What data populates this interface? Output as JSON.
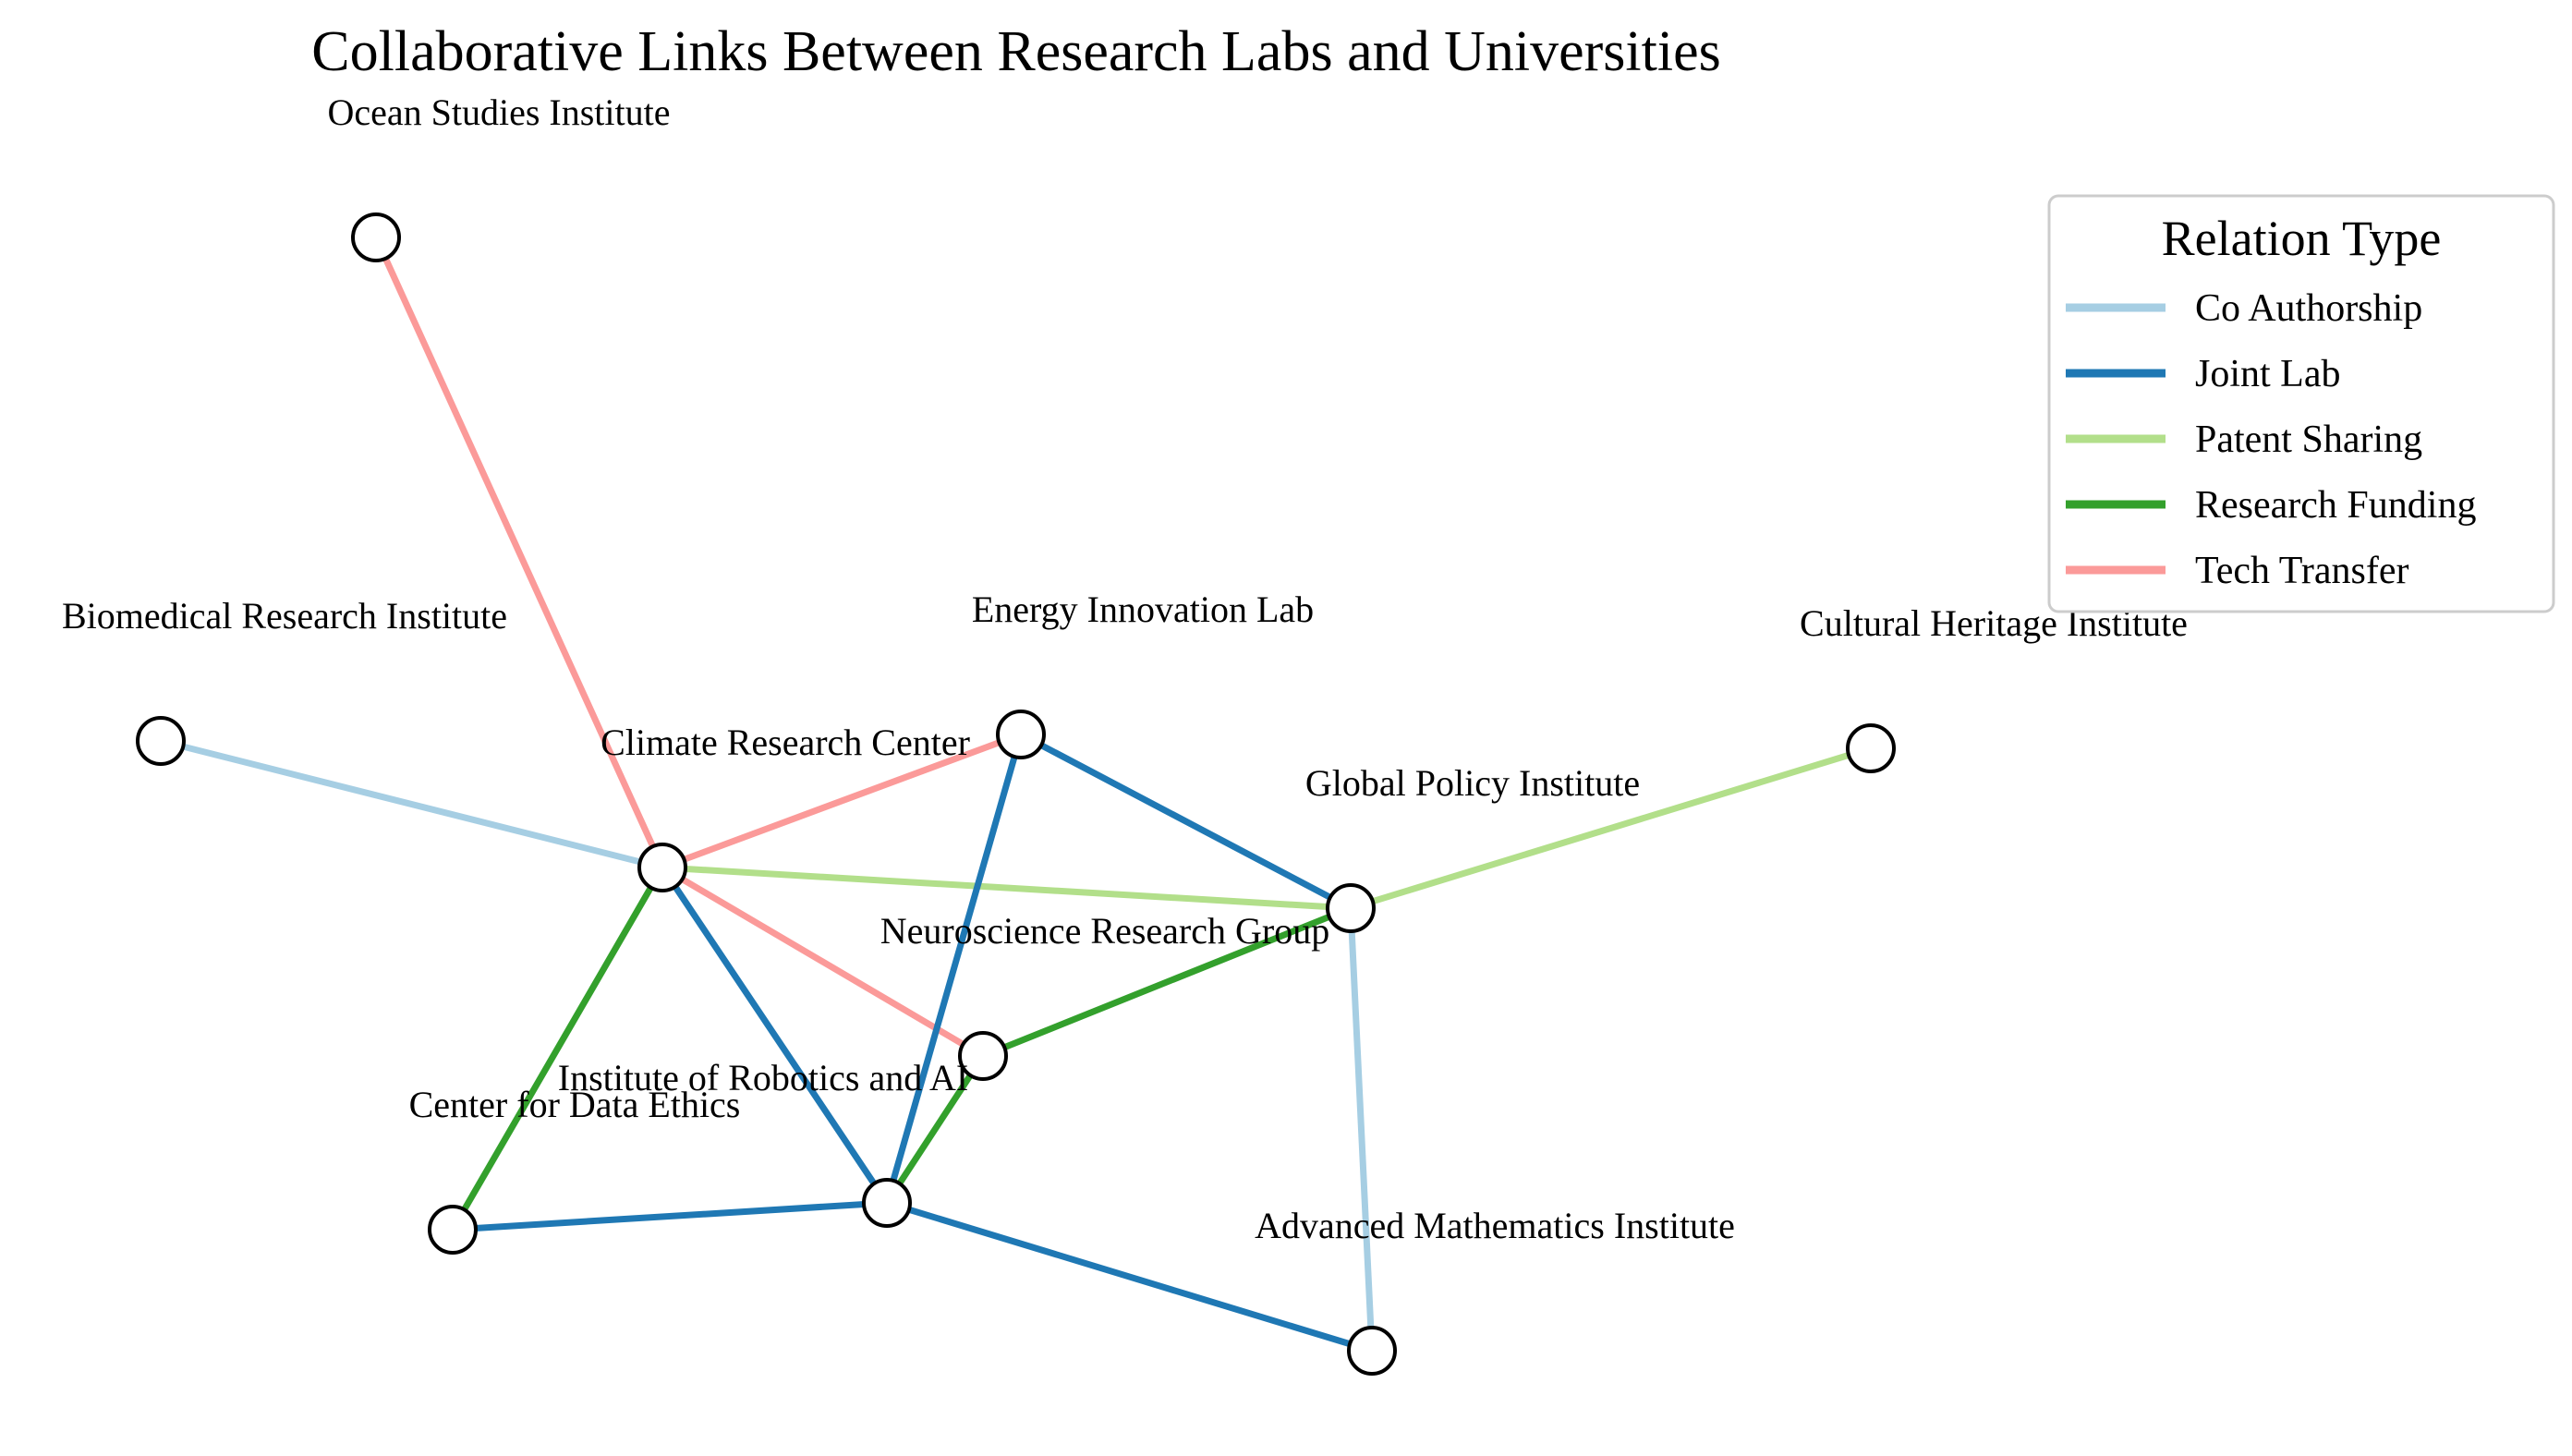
{
  "title": "Collaborative Links Between Research Labs and Universities",
  "legend": {
    "title": "Relation Type",
    "items": [
      {
        "key": "co_authorship",
        "label": "Co Authorship",
        "color": "#a6cee3"
      },
      {
        "key": "joint_lab",
        "label": "Joint Lab",
        "color": "#1f78b4"
      },
      {
        "key": "patent_sharing",
        "label": "Patent Sharing",
        "color": "#b2df8a"
      },
      {
        "key": "research_funding",
        "label": "Research Funding",
        "color": "#33a02c"
      },
      {
        "key": "tech_transfer",
        "label": "Tech Transfer",
        "color": "#fb9a99"
      }
    ]
  },
  "nodes": [
    {
      "id": "ocean",
      "label": "Ocean Studies Institute"
    },
    {
      "id": "biomed",
      "label": "Biomedical Research Institute"
    },
    {
      "id": "energy",
      "label": "Energy Innovation Lab"
    },
    {
      "id": "cultural",
      "label": "Cultural Heritage Institute"
    },
    {
      "id": "climate",
      "label": "Climate Research Center"
    },
    {
      "id": "policy",
      "label": "Global Policy Institute"
    },
    {
      "id": "neuro",
      "label": "Neuroscience Research Group"
    },
    {
      "id": "robotics",
      "label": "Institute of Robotics and AI"
    },
    {
      "id": "ethics",
      "label": "Center for Data Ethics"
    },
    {
      "id": "math",
      "label": "Advanced Mathematics Institute"
    }
  ],
  "edges": [
    {
      "source": "ocean",
      "target": "climate",
      "type": "tech_transfer"
    },
    {
      "source": "biomed",
      "target": "climate",
      "type": "co_authorship"
    },
    {
      "source": "climate",
      "target": "energy",
      "type": "tech_transfer"
    },
    {
      "source": "climate",
      "target": "policy",
      "type": "patent_sharing"
    },
    {
      "source": "climate",
      "target": "neuro",
      "type": "tech_transfer"
    },
    {
      "source": "climate",
      "target": "ethics",
      "type": "research_funding"
    },
    {
      "source": "climate",
      "target": "robotics",
      "type": "joint_lab"
    },
    {
      "source": "energy",
      "target": "policy",
      "type": "joint_lab"
    },
    {
      "source": "energy",
      "target": "robotics",
      "type": "joint_lab"
    },
    {
      "source": "policy",
      "target": "cultural",
      "type": "patent_sharing"
    },
    {
      "source": "policy",
      "target": "neuro",
      "type": "research_funding"
    },
    {
      "source": "policy",
      "target": "math",
      "type": "co_authorship"
    },
    {
      "source": "neuro",
      "target": "robotics",
      "type": "research_funding"
    },
    {
      "source": "robotics",
      "target": "ethics",
      "type": "joint_lab"
    },
    {
      "source": "robotics",
      "target": "math",
      "type": "joint_lab"
    }
  ]
}
